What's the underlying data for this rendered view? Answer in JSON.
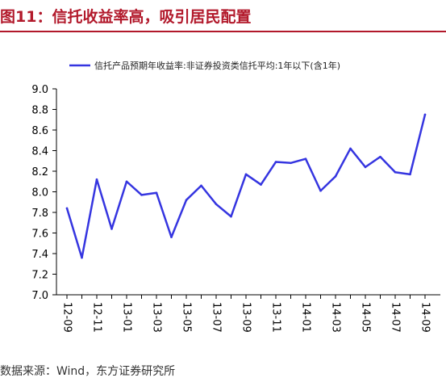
{
  "figure": {
    "title": "图11：信托收益率高，吸引居民配置",
    "source": "数据来源：Wind，东方证券研究所"
  },
  "chart_data": {
    "type": "line",
    "title": "",
    "xlabel": "",
    "ylabel": "",
    "legend_position": "top",
    "grid": false,
    "ylim": [
      7.0,
      9.0
    ],
    "y_ticks": [
      "9.0",
      "8.8",
      "8.6",
      "8.4",
      "8.2",
      "8.0",
      "7.8",
      "7.6",
      "7.4",
      "7.2",
      "7.0"
    ],
    "x_tick_labels": [
      "12-09",
      "12-11",
      "13-01",
      "13-03",
      "13-05",
      "13-07",
      "13-09",
      "13-11",
      "14-01",
      "14-03",
      "14-05",
      "14-07",
      "14-09"
    ],
    "x": [
      "12-09",
      "12-10",
      "12-11",
      "12-12",
      "13-01",
      "13-02",
      "13-03",
      "13-04",
      "13-05",
      "13-06",
      "13-07",
      "13-08",
      "13-09",
      "13-10",
      "13-11",
      "13-12",
      "14-01",
      "14-02",
      "14-03",
      "14-04",
      "14-05",
      "14-06",
      "14-07",
      "14-08",
      "14-09"
    ],
    "series": [
      {
        "name": "信托产品预期年收益率:非证券投资类信托平均:1年以下(含1年)",
        "color": "#3535e0",
        "values": [
          7.84,
          7.36,
          8.12,
          7.64,
          8.1,
          7.97,
          7.99,
          7.56,
          7.92,
          8.06,
          7.88,
          7.76,
          8.17,
          8.07,
          8.29,
          8.28,
          8.32,
          8.01,
          8.15,
          8.42,
          8.24,
          8.34,
          8.19,
          8.17,
          8.75
        ]
      }
    ]
  }
}
